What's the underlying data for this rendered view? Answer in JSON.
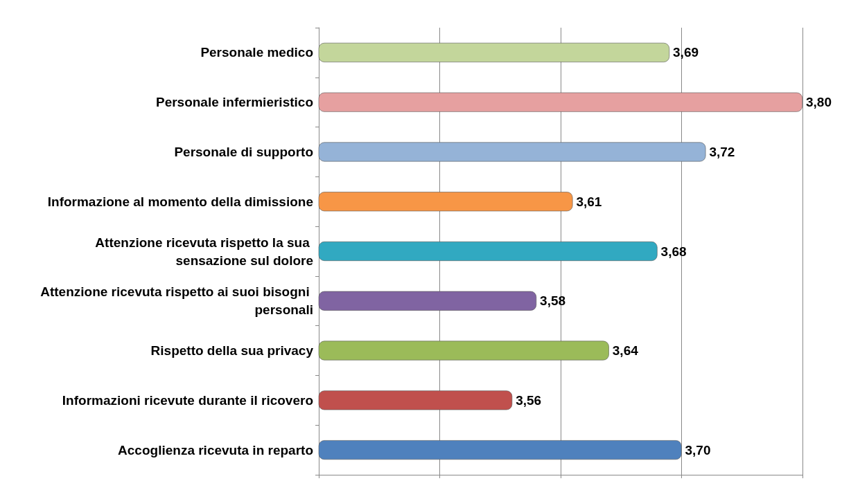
{
  "chart_data": {
    "type": "bar",
    "orientation": "horizontal",
    "categories": [
      "Personale medico",
      "Personale infermieristico",
      "Personale di supporto",
      "Informazione al momento della dimissione",
      "Attenzione ricevuta rispetto la sua sensazione sul dolore",
      "Attenzione ricevuta rispetto ai suoi bisogni personali",
      "Rispetto della sua privacy",
      "Informazioni ricevute durante il ricovero",
      "Accoglienza ricevuta in reparto"
    ],
    "values": [
      3.69,
      3.8,
      3.72,
      3.61,
      3.68,
      3.58,
      3.64,
      3.56,
      3.7
    ],
    "value_labels": [
      "3,69",
      "3,80",
      "3,72",
      "3,61",
      "3,68",
      "3,58",
      "3,64",
      "3,56",
      "3,70"
    ],
    "colors": [
      "#c3d69b",
      "#e6a0a0",
      "#95b3d7",
      "#f79646",
      "#31a9c1",
      "#8064a2",
      "#9bbb59",
      "#c0504d",
      "#4f81bd"
    ],
    "xlim": [
      3.4,
      3.8
    ],
    "xticks": [
      {
        "value": 3.4,
        "label": null
      },
      {
        "value": 3.5,
        "label": null
      },
      {
        "value": 3.6,
        "label": null
      },
      {
        "value": 3.7,
        "label": null
      },
      {
        "value": 3.8,
        "label": null
      }
    ],
    "grid": "x",
    "tick_labels": "y"
  }
}
